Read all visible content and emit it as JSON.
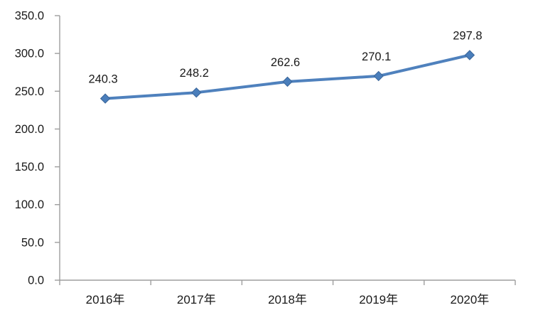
{
  "chart_data": {
    "type": "line",
    "title": "",
    "xlabel": "",
    "ylabel": "",
    "categories": [
      "2016年",
      "2017年",
      "2018年",
      "2019年",
      "2020年"
    ],
    "values": [
      240.3,
      248.2,
      262.6,
      270.1,
      297.8
    ],
    "data_labels": [
      "240.3",
      "248.2",
      "262.6",
      "270.1",
      "297.8"
    ],
    "ylim": [
      0,
      350
    ],
    "ytick_step": 50,
    "ytick_labels": [
      "0.0",
      "50.0",
      "100.0",
      "150.0",
      "200.0",
      "250.0",
      "300.0",
      "350.0"
    ],
    "grid": false,
    "legend": "none",
    "marker_shape": "diamond",
    "colors": {
      "line": "#4f81bd",
      "marker_fill": "#4a7ebb",
      "marker_edge": "#3a6599",
      "axis": "#9e9e9e",
      "text": "#1a1a1a",
      "background": "#ffffff"
    }
  }
}
